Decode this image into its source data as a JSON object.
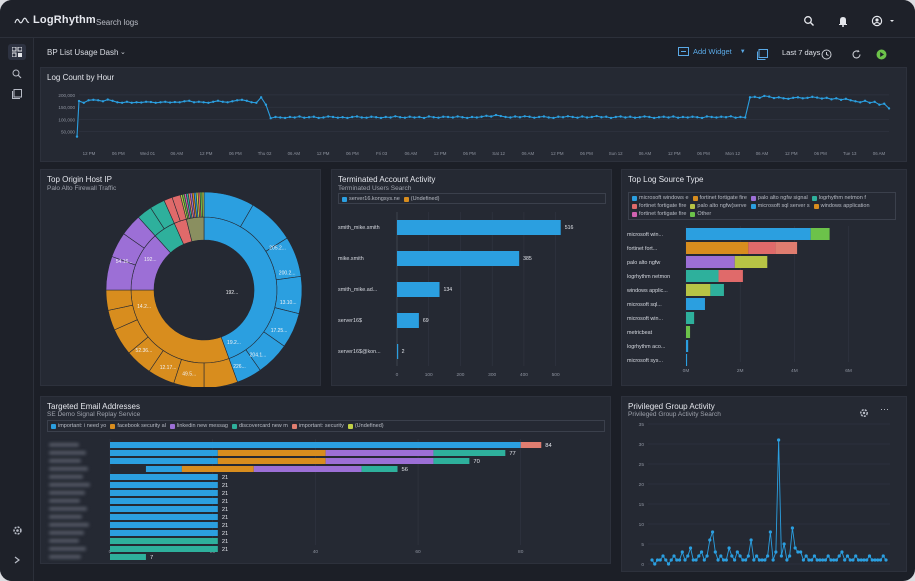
{
  "app": {
    "logo_text": "LogRhythm",
    "search_logs": "Search logs",
    "dashboard_name": "BP List Usage Dash",
    "add_widget_label": "Add Widget",
    "time_range": "Last 7 days"
  },
  "colors": {
    "blue": "#2b9fe0",
    "orange": "#d88d1e",
    "purple": "#9c6fd6",
    "olive": "#b7c445",
    "teal": "#2eb09c",
    "red": "#e06a6a",
    "green": "#6cc24a",
    "pink": "#d062b0",
    "salmon": "#e07d70",
    "lime": "#c2d146"
  },
  "log_count": {
    "title": "Log Count by Hour",
    "y_ticks": [
      "200,000",
      "150,000",
      "100,000",
      "50,000"
    ],
    "x_ticks": [
      "12 PM",
      "06 PM",
      "Wed 01",
      "06 AM",
      "12 PM",
      "06 PM",
      "Thu 02",
      "06 AM",
      "12 PM",
      "06 PM",
      "Fri 03",
      "06 AM",
      "12 PM",
      "06 PM",
      "Sat 12",
      "06 AM",
      "12 PM",
      "06 PM",
      "Sun 12",
      "06 AM",
      "12 PM",
      "06 PM",
      "Mon 12",
      "06 AM",
      "12 PM",
      "06 PM",
      "Tue 13",
      "06 AM"
    ],
    "series": [
      175000,
      168000,
      178000,
      180000,
      178000,
      174000,
      181000,
      176000,
      170000,
      168000,
      172000,
      168000,
      170000,
      169000,
      172000,
      171000,
      168000,
      170000,
      172000,
      169000,
      171000,
      170000,
      174000,
      176000,
      170000,
      172000,
      170000,
      168000,
      172000,
      176000,
      172000,
      170000,
      174000,
      178000,
      180000,
      176000,
      170000,
      168000,
      190000,
      160000,
      105000,
      110000,
      108000,
      106000,
      110000,
      108000,
      112000,
      107000,
      109000,
      111000,
      106000,
      108000,
      112000,
      110000,
      107000,
      109000,
      106000,
      110000,
      112000,
      108000,
      107000,
      111000,
      109000,
      106000,
      110000,
      108000,
      113000,
      109000,
      107000,
      111000,
      108000,
      110000,
      106000,
      112000,
      109000,
      107000,
      111000,
      110000,
      108000,
      112000,
      109000,
      106000,
      110000,
      108000,
      111000,
      115000,
      112000,
      118000,
      114000,
      110000,
      108000,
      112000,
      109000,
      113000,
      111000,
      107000,
      110000,
      112000,
      108000,
      106000,
      111000,
      109000,
      113000,
      110000,
      107000,
      112000,
      108000,
      110000,
      114000,
      109000,
      111000,
      106000,
      110000,
      112000,
      108000,
      111000,
      107000,
      109000,
      112000,
      110000,
      106000,
      109000,
      111000,
      108000,
      112000,
      107000,
      110000,
      108000,
      111000,
      109000,
      106000,
      112000,
      110000,
      108000,
      111000,
      109000,
      113000,
      107000,
      110000,
      108000,
      190000,
      192000,
      188000,
      196000,
      193000,
      187000,
      190000,
      186000,
      184000,
      188000,
      190000,
      186000,
      188000,
      192000,
      189000,
      185000,
      188000,
      182000,
      186000,
      180000,
      184000,
      178000,
      174000,
      170000,
      176000,
      168000,
      172000,
      160000,
      164000,
      145000
    ]
  },
  "origin_host": {
    "title": "Top Origin Host IP",
    "subtitle": "Palo Alto Firewall Traffic",
    "labels": [
      "200.2...",
      "205.2...",
      "13.10...",
      "17.25...",
      "204.1...",
      "226...",
      "19.2...",
      "49.5...",
      "12.17...",
      "52.36...",
      "54.16...",
      "192...",
      "14.2..."
    ]
  },
  "terminated": {
    "title": "Terminated Account Activity",
    "subtitle": "Terminated Users Search",
    "legend": [
      "server16.kongsys.ne",
      "(Undefined)"
    ],
    "categories": [
      "smith_mike.smith",
      "mike.smith",
      "smith_mike.ad...",
      "server16$",
      "server16$@kon..."
    ],
    "values": [
      516,
      385,
      134,
      69,
      2
    ],
    "value_labels": [
      "516",
      "385",
      "134",
      "69",
      "2"
    ],
    "x_ticks": [
      "0",
      "100",
      "200",
      "300",
      "400",
      "500"
    ]
  },
  "log_source": {
    "title": "Top Log Source Type",
    "legend": [
      "microsoft windows e",
      "fortinet fortigate fire",
      "palo alto ngfw signal",
      "logrhythm netmon f",
      "fortinet fortigate fire",
      "palo alto ngfw(serve",
      "microsoft sql server s",
      "windows application",
      "fortinet fortigate fire",
      "Other"
    ],
    "categories": [
      "microsoft win...",
      "fortinet fort...",
      "palo alto ngfw",
      "logrhythm netmon",
      "windows applic...",
      "microsoft sql...",
      "microsoft win...",
      "metricbeat",
      "logrhythm aco...",
      "microsoft sys..."
    ],
    "x_ticks": [
      "0M",
      "2M",
      "4M",
      "6M"
    ]
  },
  "email": {
    "title": "Targeted Email Addresses",
    "subtitle": "SE Demo Signal Replay Service",
    "legend": [
      "important: i need yo",
      "facebook security al",
      "linkedin new messag",
      "discovercard new m",
      "important: security",
      "(Undefined)"
    ],
    "values": [
      84,
      77,
      70,
      56,
      21,
      21,
      21,
      21,
      21,
      21,
      21,
      21,
      21,
      21,
      7
    ],
    "value_labels": [
      "84",
      "77",
      "70",
      "56",
      "21",
      "21",
      "21",
      "21",
      "21",
      "21",
      "21",
      "21",
      "21",
      "21",
      "7"
    ],
    "x_ticks": [
      "0",
      "20",
      "40",
      "60",
      "80"
    ]
  },
  "privileged": {
    "title": "Privileged Group Activity",
    "subtitle": "Privileged Group Activity Search",
    "y_ticks": [
      "35",
      "30",
      "25",
      "20",
      "15",
      "10",
      "5",
      "0"
    ],
    "values": [
      1,
      0,
      1,
      1,
      2,
      1,
      0,
      1,
      2,
      1,
      1,
      3,
      1,
      2,
      4,
      1,
      1,
      2,
      3,
      1,
      2,
      6,
      8,
      3,
      1,
      2,
      1,
      1,
      4,
      2,
      1,
      3,
      2,
      1,
      1,
      2,
      6,
      1,
      2,
      1,
      1,
      1,
      2,
      8,
      1,
      3,
      31,
      2,
      5,
      1,
      2,
      9,
      4,
      3,
      3,
      1,
      2,
      1,
      1,
      2,
      1,
      1,
      1,
      1,
      2,
      1,
      1,
      1,
      2,
      3,
      1,
      2,
      1,
      1,
      2,
      1,
      1,
      1,
      1,
      2,
      1,
      1,
      1,
      1,
      2,
      1
    ]
  }
}
